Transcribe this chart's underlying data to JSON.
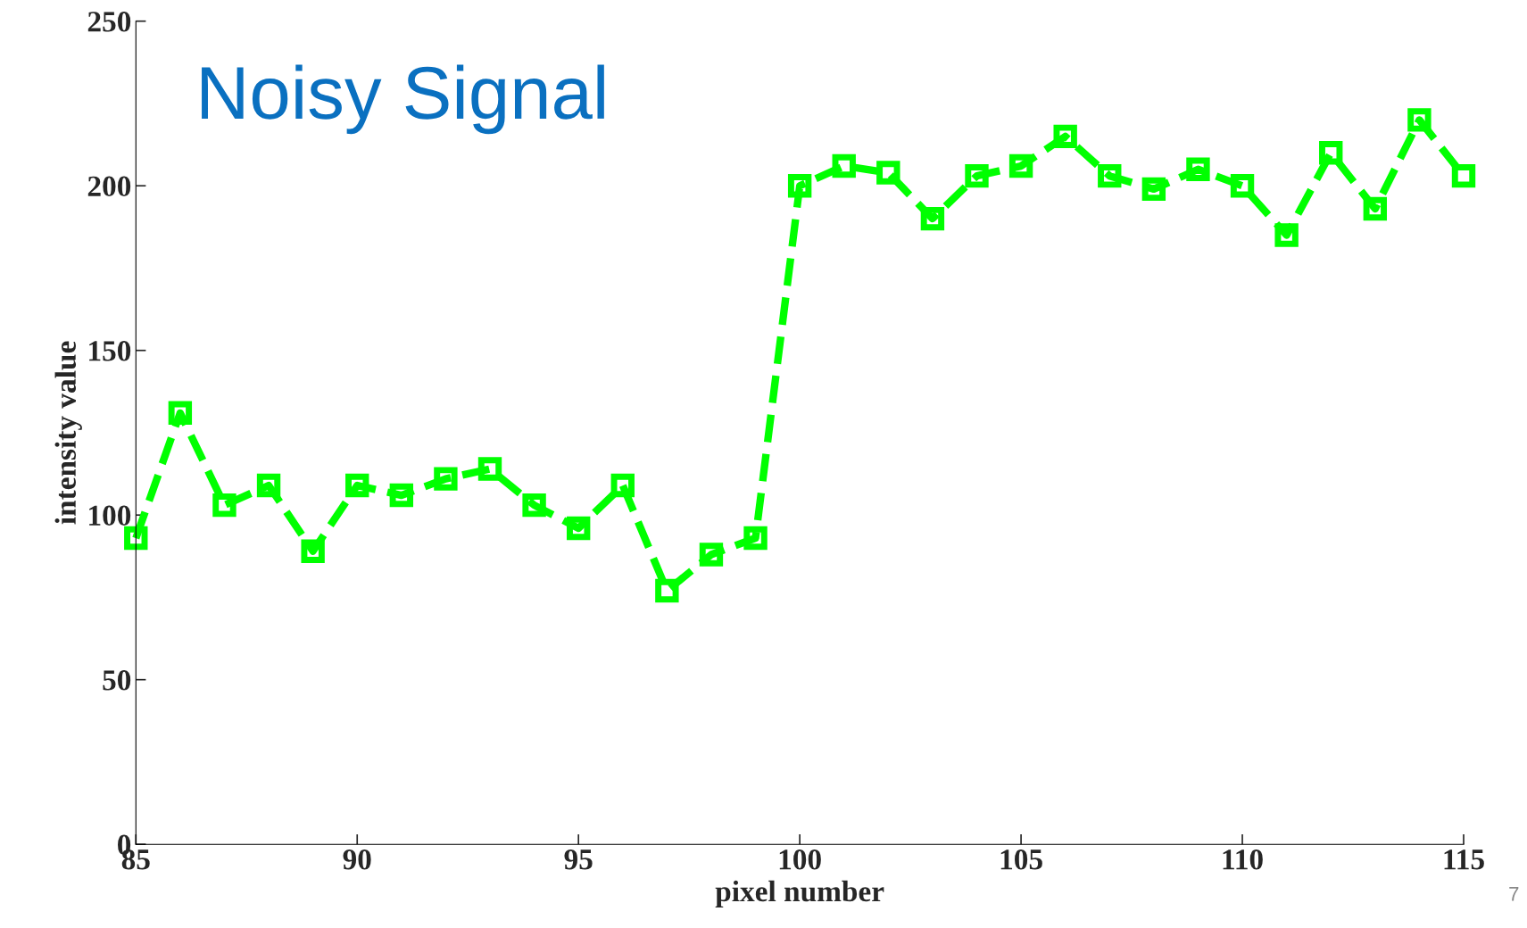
{
  "chart_data": {
    "type": "line",
    "title": "Noisy Signal",
    "xlabel": "pixel number",
    "ylabel": "intensity value",
    "x": [
      85,
      86,
      87,
      88,
      89,
      90,
      91,
      92,
      93,
      94,
      95,
      96,
      97,
      98,
      99,
      100,
      101,
      102,
      103,
      104,
      105,
      106,
      107,
      108,
      109,
      110,
      111,
      112,
      113,
      114,
      115
    ],
    "series": [
      {
        "color": "#00ff00",
        "values": [
          93,
          131,
          103,
          109,
          89,
          109,
          106,
          111,
          114,
          103,
          96,
          109,
          77,
          88,
          93,
          200,
          206,
          204,
          190,
          203,
          206,
          215,
          203,
          199,
          205,
          200,
          185,
          210,
          193,
          220,
          203
        ]
      }
    ],
    "xlim": [
      85,
      115
    ],
    "xticks": [
      85,
      90,
      95,
      100,
      105,
      110,
      115
    ],
    "ylim": [
      0,
      250
    ],
    "yticks": [
      0,
      50,
      100,
      150,
      200,
      250
    ],
    "marker": "square",
    "line_style": "dashed",
    "grid": false,
    "annotations": [
      "7"
    ]
  }
}
